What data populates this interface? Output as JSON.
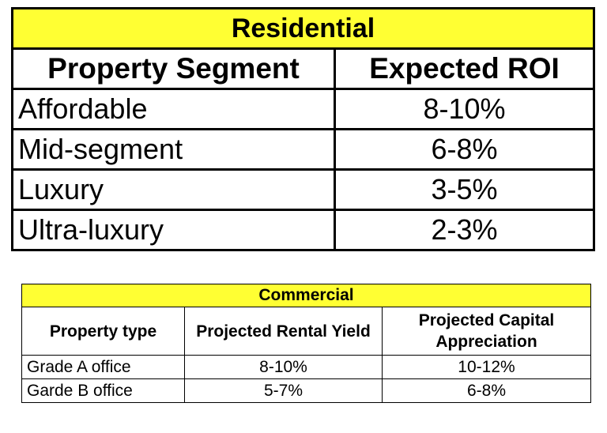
{
  "residential": {
    "title": "Residential",
    "headers": [
      "Property Segment",
      "Expected ROI"
    ],
    "rows": [
      {
        "segment": "Affordable",
        "roi": "8-10%"
      },
      {
        "segment": "Mid-segment",
        "roi": "6-8%"
      },
      {
        "segment": "Luxury",
        "roi": "3-5%"
      },
      {
        "segment": "Ultra-luxury",
        "roi": "2-3%"
      }
    ]
  },
  "commercial": {
    "title": "Commercial",
    "headers": [
      "Property type",
      "Projected Rental Yield",
      "Projected Capital Appreciation"
    ],
    "rows": [
      {
        "type": "Grade A office",
        "rental_yield": "8-10%",
        "capital_appreciation": "10-12%"
      },
      {
        "type": "Garde B office",
        "rental_yield": "5-7%",
        "capital_appreciation": "6-8%"
      }
    ]
  },
  "colors": {
    "title_fill": "#ffff33",
    "border": "#000000"
  }
}
